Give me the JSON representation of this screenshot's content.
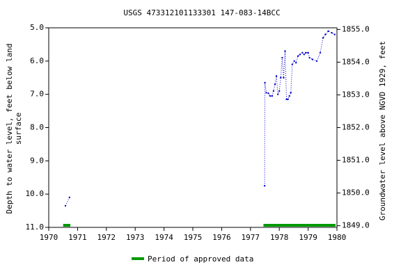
{
  "chart_data": {
    "type": "line",
    "title": "USGS 473312101133301 147-083-14BCC",
    "ylabel": [
      "Depth to water level, feet below land",
      "surface"
    ],
    "y2label": "Groundwater level above NGVD 1929, feet",
    "xlim": [
      1970,
      1980
    ],
    "xticks": [
      1970,
      1971,
      1972,
      1973,
      1974,
      1975,
      1976,
      1977,
      1978,
      1979,
      1980
    ],
    "ylim": [
      11.0,
      5.0
    ],
    "yticks": [
      {
        "value": 5,
        "label": "5.0"
      },
      {
        "value": 6,
        "label": "6.0"
      },
      {
        "value": 7,
        "label": "7.0"
      },
      {
        "value": 8,
        "label": "8.0"
      },
      {
        "value": 9,
        "label": "9.0"
      },
      {
        "value": 10,
        "label": "10.0"
      },
      {
        "value": 11,
        "label": "11.0"
      }
    ],
    "y2lim": [
      1848.95,
      1855.05
    ],
    "y2ticks": [
      {
        "value": 1849,
        "label": "1849.0"
      },
      {
        "value": 1850,
        "label": "1850.0"
      },
      {
        "value": 1851,
        "label": "1851.0"
      },
      {
        "value": 1852,
        "label": "1852.0"
      },
      {
        "value": 1853,
        "label": "1853.0"
      },
      {
        "value": 1854,
        "label": "1854.0"
      },
      {
        "value": 1855,
        "label": "1855.0"
      }
    ],
    "series": [
      {
        "color": "#0000cc",
        "x": [
          1970.58,
          1970.72,
          null,
          1977.49,
          1977.5,
          1977.55,
          1977.62,
          1977.68,
          1977.75,
          1977.8,
          1977.85,
          1977.9,
          1977.95,
          1978.0,
          1978.05,
          1978.1,
          1978.15,
          1978.2,
          1978.25,
          1978.3,
          1978.35,
          1978.4,
          1978.45,
          1978.52,
          1978.58,
          1978.65,
          1978.72,
          1978.8,
          1978.86,
          1978.92,
          1979.0,
          1979.05,
          1979.15,
          1979.3,
          1979.42,
          1979.52,
          1979.6,
          1979.7,
          1979.82,
          1979.92
        ],
        "values": [
          10.35,
          10.1,
          null,
          9.75,
          6.65,
          6.95,
          6.97,
          7.05,
          7.05,
          6.9,
          6.7,
          6.45,
          7.0,
          6.9,
          6.5,
          5.9,
          6.5,
          5.7,
          7.15,
          7.15,
          7.05,
          6.95,
          6.1,
          6.0,
          6.05,
          5.85,
          5.8,
          5.75,
          5.8,
          5.75,
          5.75,
          5.9,
          5.95,
          6.0,
          5.75,
          5.3,
          5.2,
          5.1,
          5.15,
          5.2
        ]
      }
    ],
    "approved": {
      "name": "Period of approved data",
      "color": "#009900",
      "periods": [
        [
          1970.5,
          1970.75
        ],
        [
          1977.45,
          1979.95
        ]
      ]
    }
  }
}
